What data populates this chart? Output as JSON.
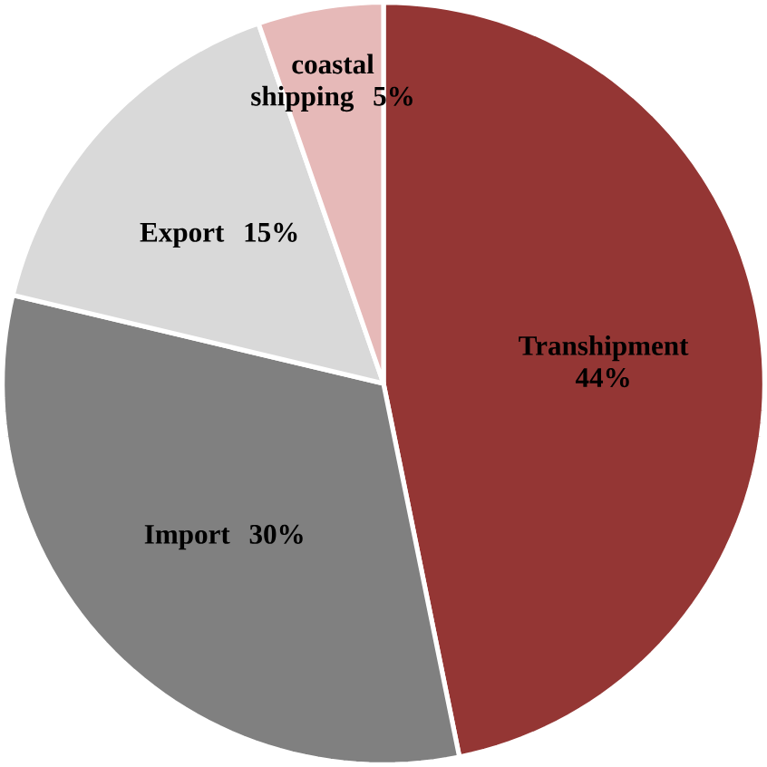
{
  "chart_data": {
    "type": "pie",
    "categories": [
      "Transhipment",
      "Import",
      "Export",
      "coastal shipping"
    ],
    "values": [
      44,
      30,
      15,
      5
    ],
    "value_labels": [
      "44%",
      "30%",
      "15%",
      "5%"
    ],
    "colors": [
      "#943634",
      "#808080",
      "#d9d9d9",
      "#e6b9b8"
    ]
  }
}
